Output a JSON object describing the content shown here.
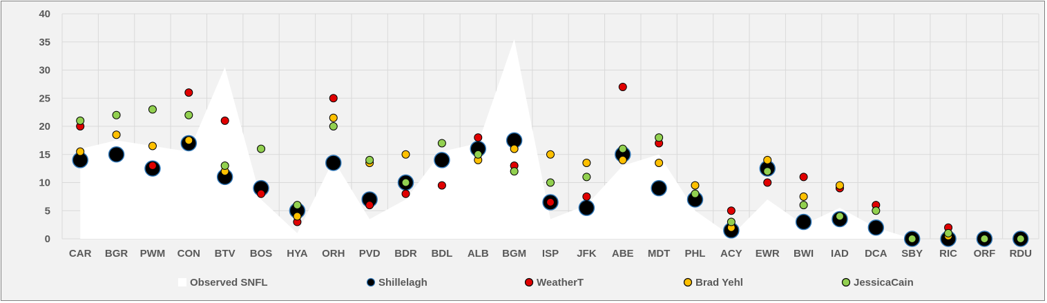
{
  "chart_data": {
    "type": "area",
    "title": "",
    "xlabel": "",
    "ylabel": "",
    "ylim": [
      0,
      40
    ],
    "yticks": [
      0,
      5,
      10,
      15,
      20,
      25,
      30,
      35,
      40
    ],
    "grid": true,
    "legend_position": "bottom",
    "categories": [
      "CAR",
      "BGR",
      "PWM",
      "CON",
      "BTV",
      "BOS",
      "HYA",
      "ORH",
      "PVD",
      "BDR",
      "BDL",
      "ALB",
      "BGM",
      "ISP",
      "JFK",
      "ABE",
      "MDT",
      "PHL",
      "ACY",
      "EWR",
      "BWI",
      "IAD",
      "DCA",
      "SBY",
      "RIC",
      "ORF",
      "RDU"
    ],
    "series": [
      {
        "name": "Observed SNFL",
        "kind": "area",
        "color": "#ffffff",
        "values": [
          16,
          17.5,
          16.5,
          15.5,
          30.5,
          7,
          1,
          14,
          3.5,
          7,
          15.5,
          17,
          35.5,
          3.5,
          6,
          13,
          15,
          5,
          0.5,
          7,
          2.5,
          5.5,
          2,
          0,
          0,
          0,
          0
        ]
      },
      {
        "name": "Shillelagh",
        "kind": "marker",
        "color": "#000000",
        "edge": "#2e75b6",
        "values": [
          14,
          15,
          12.5,
          17,
          11,
          9,
          5,
          13.5,
          7,
          10,
          14,
          16,
          17.5,
          6.5,
          5.5,
          15,
          9,
          7,
          1.5,
          12.5,
          3,
          3.5,
          2,
          0,
          0,
          0,
          0
        ]
      },
      {
        "name": "WeatherT",
        "kind": "marker",
        "color": "#e00000",
        "edge": "#000000",
        "values": [
          20,
          null,
          13,
          26,
          21,
          8,
          3,
          25,
          6,
          8,
          9.5,
          18,
          13,
          6.5,
          7.5,
          27,
          17,
          null,
          5,
          10,
          11,
          9,
          6,
          null,
          2,
          null,
          null
        ]
      },
      {
        "name": "Brad Yehl",
        "kind": "marker",
        "color": "#ffc000",
        "edge": "#000000",
        "values": [
          15.5,
          18.5,
          16.5,
          17.5,
          12,
          null,
          4,
          21.5,
          13.5,
          15,
          null,
          14,
          16,
          15,
          13.5,
          14,
          13.5,
          9.5,
          2,
          14,
          7.5,
          9.5,
          null,
          null,
          0.5,
          null,
          null
        ]
      },
      {
        "name": "JessicaCain",
        "kind": "marker",
        "color": "#92d050",
        "edge": "#000000",
        "values": [
          21,
          22,
          23,
          22,
          13,
          16,
          6,
          20,
          14,
          10,
          17,
          15,
          12,
          10,
          11,
          16,
          18,
          8,
          3,
          12,
          6,
          4,
          5,
          0,
          1,
          0,
          0
        ]
      }
    ]
  }
}
